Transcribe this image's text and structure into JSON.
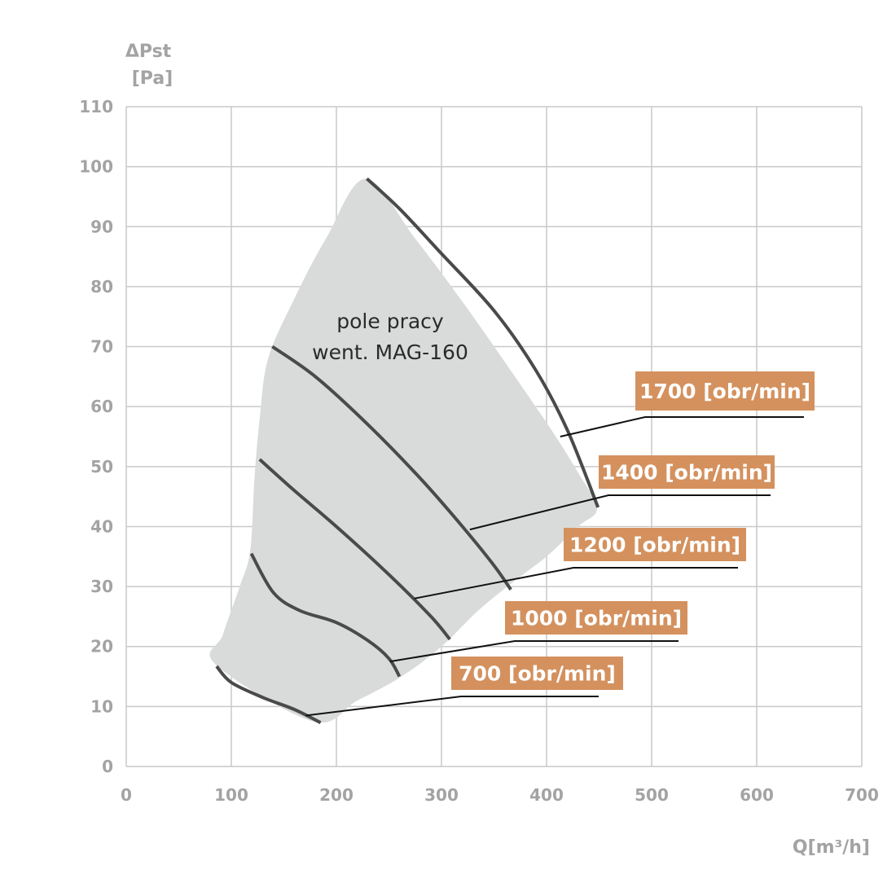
{
  "chart_data": {
    "type": "line",
    "title": "",
    "xlabel": "Q[m³/h]",
    "ylabel_line1": "ΔPst",
    "ylabel_line2": "[Pa]",
    "xlim": [
      0,
      700
    ],
    "ylim": [
      0,
      110
    ],
    "x_ticks": [
      0,
      100,
      200,
      300,
      400,
      500,
      600,
      700
    ],
    "y_ticks": [
      0,
      10,
      20,
      30,
      40,
      50,
      60,
      70,
      80,
      90,
      100,
      110
    ],
    "grid": true,
    "colors": {
      "curve": "#4a4a4a",
      "field": "#d9dbdb",
      "badge": "#d4915e",
      "grid": "#c9c9c9",
      "axis_text": "#a3a3a3"
    },
    "operating_field": {
      "label_line1": "pole pracy",
      "label_line2": "went. MAG-160",
      "boundary": [
        [
          178,
          7.5
        ],
        [
          85,
          17
        ],
        [
          92,
          22
        ],
        [
          108,
          30
        ],
        [
          118,
          36
        ],
        [
          122,
          48
        ],
        [
          127,
          58
        ],
        [
          135,
          68
        ],
        [
          160,
          78
        ],
        [
          190,
          88
        ],
        [
          228,
          98
        ],
        [
          275,
          88
        ],
        [
          322,
          77
        ],
        [
          366,
          66
        ],
        [
          405,
          56
        ],
        [
          430,
          49
        ],
        [
          448,
          43
        ],
        [
          430,
          40
        ],
        [
          400,
          35
        ],
        [
          370,
          31
        ],
        [
          335,
          26
        ],
        [
          300,
          20
        ],
        [
          262,
          15
        ],
        [
          220,
          11
        ]
      ]
    },
    "series": [
      {
        "name": "700 [obr/min]",
        "points": [
          [
            86,
            16.7
          ],
          [
            100,
            14
          ],
          [
            130,
            11.5
          ],
          [
            160,
            9.5
          ],
          [
            185,
            7.3
          ]
        ],
        "label_anchor": [
          171,
          8.5
        ]
      },
      {
        "name": "1000 [obr/min]",
        "points": [
          [
            119,
            35.5
          ],
          [
            140,
            29
          ],
          [
            165,
            26
          ],
          [
            200,
            24
          ],
          [
            230,
            21
          ],
          [
            250,
            18
          ],
          [
            260,
            15
          ]
        ],
        "label_anchor": [
          251,
          17.5
        ]
      },
      {
        "name": "1200 [obr/min]",
        "points": [
          [
            127,
            51.2
          ],
          [
            160,
            46
          ],
          [
            200,
            40
          ],
          [
            250,
            32
          ],
          [
            290,
            25
          ],
          [
            308,
            21.2
          ]
        ],
        "label_anchor": [
          274,
          28
        ]
      },
      {
        "name": "1400 [obr/min]",
        "points": [
          [
            139,
            70
          ],
          [
            180,
            65
          ],
          [
            230,
            57
          ],
          [
            280,
            48
          ],
          [
            320,
            40
          ],
          [
            350,
            33.5
          ],
          [
            366,
            29.5
          ]
        ],
        "label_anchor": [
          327,
          39.5
        ]
      },
      {
        "name": "1700 [obr/min]",
        "points": [
          [
            229,
            98
          ],
          [
            260,
            93
          ],
          [
            300,
            85.5
          ],
          [
            350,
            76
          ],
          [
            390,
            66
          ],
          [
            420,
            56
          ],
          [
            449,
            43.2
          ]
        ],
        "label_anchor": [
          413,
          55
        ]
      }
    ]
  }
}
